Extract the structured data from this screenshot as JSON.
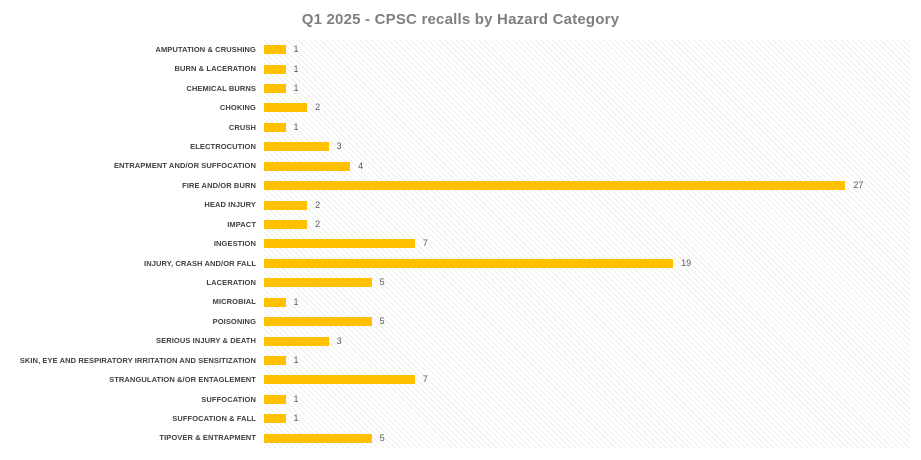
{
  "title": "Q1 2025 - CPSC recalls by Hazard Category",
  "colors": {
    "bar": "#FFC000",
    "title_text": "#7F7F7F",
    "category_text": "#404040",
    "value_text": "#595959",
    "plot_hatch": "#ECECEC",
    "background": "#FFFFFF"
  },
  "chart_data": {
    "type": "bar",
    "orientation": "horizontal",
    "title": "Q1 2025 - CPSC recalls by Hazard Category",
    "categories": [
      "AMPUTATION & CRUSHING",
      "BURN & LACERATION",
      "CHEMICAL BURNS",
      "CHOKING",
      "CRUSH",
      "ELECTROCUTION",
      "ENTRAPMENT AND/OR SUFFOCATION",
      "FIRE AND/OR BURN",
      "HEAD INJURY",
      "IMPACT",
      "INGESTION",
      "INJURY, CRASH AND/OR FALL",
      "LACERATION",
      "MICROBIAL",
      "POISONING",
      "SERIOUS INJURY & DEATH",
      "SKIN, EYE AND RESPIRATORY IRRITATION AND SENSITIZATION",
      "STRANGULATION &/OR ENTAGLEMENT",
      "SUFFOCATION",
      "SUFFOCATION & FALL",
      "TIPOVER & ENTRAPMENT"
    ],
    "values": [
      1,
      1,
      1,
      2,
      1,
      3,
      4,
      27,
      2,
      2,
      7,
      19,
      5,
      1,
      5,
      3,
      1,
      7,
      1,
      1,
      5
    ],
    "xlabel": "",
    "ylabel": "",
    "xlim": [
      0,
      30
    ],
    "data_labels": true,
    "grid": false,
    "legend": false,
    "bar_color": "#FFC000",
    "plot_background": "diagonal-hatch"
  }
}
